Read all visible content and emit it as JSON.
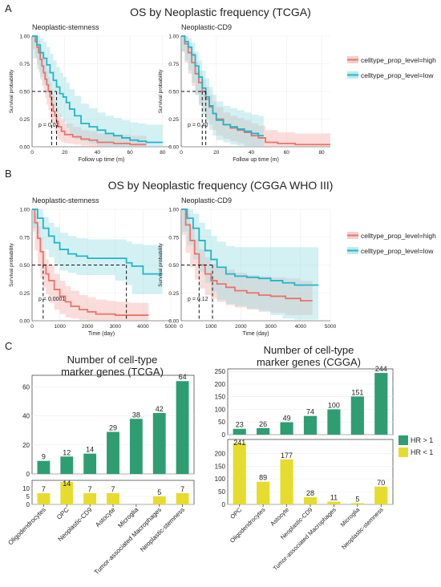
{
  "panel_labels": [
    "A",
    "B",
    "C"
  ],
  "section_titles": {
    "A": "OS by Neoplastic frequency (TCGA)",
    "B": "OS by Neoplastic frequency (CGGA WHO III)"
  },
  "km_legend": {
    "high": "celltype_prop_level=high",
    "low": "celltype_prop_level=low",
    "high_color": "#e8746b",
    "low_color": "#22b6c6"
  },
  "bar_legend": {
    "hr_up": "HR > 1",
    "hr_down": "HR < 1",
    "hr_up_color": "#2e9e72",
    "hr_down_color": "#e6dc2e"
  },
  "chart_data": [
    {
      "type": "line",
      "subtitle": "Neoplastic-stemness",
      "xlabel": "Follow up time (m)",
      "ylabel": "Survival probability",
      "xlim": [
        0,
        85
      ],
      "ylim": [
        0,
        1
      ],
      "x_ticks": [
        0,
        20,
        40,
        60,
        80
      ],
      "y_ticks": [
        "0.00",
        "0.25",
        "0.50",
        "0.75",
        "1.00"
      ],
      "pvalue": "p = 0.01",
      "medians": [
        12,
        15
      ],
      "series": [
        {
          "name": "celltype_prop_level=high",
          "color": "#e8746b",
          "x": [
            0,
            2,
            3,
            4,
            5,
            6,
            7,
            8,
            9,
            10,
            11,
            12,
            13,
            14,
            15,
            16,
            18,
            20,
            25,
            30,
            35,
            40,
            50,
            60,
            70
          ],
          "y": [
            1.0,
            0.95,
            0.9,
            0.85,
            0.79,
            0.73,
            0.67,
            0.61,
            0.56,
            0.5,
            0.45,
            0.38,
            0.32,
            0.28,
            0.23,
            0.18,
            0.14,
            0.11,
            0.09,
            0.07,
            0.06,
            0.04,
            0.03,
            0.02,
            0.02
          ],
          "band_upper": [
            1.0,
            1.0,
            0.99,
            0.96,
            0.91,
            0.85,
            0.8,
            0.74,
            0.69,
            0.63,
            0.58,
            0.52,
            0.46,
            0.41,
            0.36,
            0.3,
            0.25,
            0.21,
            0.18,
            0.15,
            0.14,
            0.12,
            0.11,
            0.1,
            0.1
          ],
          "band_lower": [
            1.0,
            0.88,
            0.8,
            0.74,
            0.67,
            0.61,
            0.55,
            0.49,
            0.44,
            0.38,
            0.33,
            0.26,
            0.21,
            0.17,
            0.13,
            0.09,
            0.06,
            0.04,
            0.03,
            0.02,
            0.01,
            0.0,
            0.0,
            0.0,
            0.0
          ]
        },
        {
          "name": "celltype_prop_level=low",
          "color": "#22b6c6",
          "x": [
            0,
            3,
            5,
            7,
            9,
            11,
            13,
            15,
            17,
            19,
            21,
            23,
            26,
            30,
            35,
            40,
            45,
            50,
            55,
            60,
            65,
            70,
            80
          ],
          "y": [
            1.0,
            0.92,
            0.85,
            0.8,
            0.74,
            0.67,
            0.6,
            0.54,
            0.48,
            0.45,
            0.4,
            0.34,
            0.28,
            0.21,
            0.18,
            0.15,
            0.12,
            0.1,
            0.08,
            0.06,
            0.05,
            0.04,
            0.04
          ],
          "band_upper": [
            1.0,
            1.0,
            0.98,
            0.95,
            0.9,
            0.84,
            0.78,
            0.72,
            0.67,
            0.63,
            0.58,
            0.52,
            0.46,
            0.39,
            0.35,
            0.31,
            0.28,
            0.26,
            0.24,
            0.22,
            0.21,
            0.2,
            0.2
          ],
          "band_lower": [
            1.0,
            0.8,
            0.7,
            0.63,
            0.56,
            0.49,
            0.42,
            0.36,
            0.3,
            0.27,
            0.22,
            0.17,
            0.12,
            0.07,
            0.05,
            0.03,
            0.01,
            0.0,
            0.0,
            0.0,
            0.0,
            0.0,
            0.0
          ]
        }
      ]
    },
    {
      "type": "line",
      "subtitle": "Neoplastic-CD9",
      "xlabel": "Follow up time (m)",
      "ylabel": "Survival probability",
      "xlim": [
        0,
        85
      ],
      "ylim": [
        0,
        1
      ],
      "x_ticks": [
        0,
        20,
        40,
        60,
        80
      ],
      "y_ticks": [
        "0.00",
        "0.25",
        "0.50",
        "0.75",
        "1.00"
      ],
      "pvalue": "p = 0.40",
      "medians": [
        12,
        14
      ],
      "series": [
        {
          "name": "celltype_prop_level=high",
          "color": "#e8746b",
          "x": [
            0,
            2,
            4,
            6,
            8,
            10,
            12,
            14,
            16,
            18,
            20,
            24,
            28,
            32,
            36,
            40,
            44,
            48,
            55,
            65,
            75,
            85
          ],
          "y": [
            1.0,
            0.93,
            0.85,
            0.76,
            0.66,
            0.58,
            0.5,
            0.43,
            0.36,
            0.3,
            0.25,
            0.2,
            0.17,
            0.15,
            0.13,
            0.1,
            0.08,
            0.04,
            0.03,
            0.02,
            0.02,
            0.02
          ],
          "band_upper": [
            1.0,
            1.0,
            0.94,
            0.86,
            0.77,
            0.69,
            0.61,
            0.54,
            0.47,
            0.41,
            0.36,
            0.31,
            0.28,
            0.26,
            0.24,
            0.21,
            0.19,
            0.15,
            0.13,
            0.12,
            0.12,
            0.12
          ],
          "band_lower": [
            1.0,
            0.86,
            0.76,
            0.66,
            0.55,
            0.47,
            0.39,
            0.32,
            0.25,
            0.2,
            0.15,
            0.1,
            0.07,
            0.05,
            0.03,
            0.01,
            0.0,
            0.0,
            0.0,
            0.0,
            0.0,
            0.0
          ]
        },
        {
          "name": "celltype_prop_level=low",
          "color": "#22b6c6",
          "x": [
            0,
            2,
            4,
            6,
            8,
            10,
            12,
            14,
            16,
            18,
            20,
            24,
            28,
            32,
            36,
            40,
            44,
            47
          ],
          "y": [
            1.0,
            0.95,
            0.9,
            0.83,
            0.73,
            0.63,
            0.53,
            0.45,
            0.37,
            0.3,
            0.24,
            0.2,
            0.18,
            0.16,
            0.14,
            0.12,
            0.1,
            0.1
          ],
          "band_upper": [
            1.0,
            1.0,
            0.98,
            0.94,
            0.86,
            0.78,
            0.69,
            0.62,
            0.54,
            0.47,
            0.41,
            0.37,
            0.35,
            0.33,
            0.31,
            0.29,
            0.28,
            0.28
          ],
          "band_lower": [
            1.0,
            0.86,
            0.78,
            0.69,
            0.58,
            0.47,
            0.37,
            0.29,
            0.21,
            0.15,
            0.1,
            0.06,
            0.04,
            0.02,
            0.01,
            0.0,
            0.0,
            0.0
          ]
        }
      ]
    },
    {
      "type": "line",
      "subtitle": "Neoplastic-stemness",
      "xlabel": "Time (day)",
      "ylabel": "Survival probability",
      "xlim": [
        0,
        5000
      ],
      "ylim": [
        0,
        1
      ],
      "x_ticks": [
        0,
        1000,
        2000,
        3000,
        4000,
        5000
      ],
      "y_ticks": [
        "0.00",
        "0.25",
        "0.50",
        "0.75",
        "1.00"
      ],
      "pvalue": "p = 0.0001",
      "medians": [
        400,
        3400
      ],
      "series": [
        {
          "name": "celltype_prop_level=high",
          "color": "#e8746b",
          "x": [
            0,
            100,
            200,
            300,
            400,
            500,
            600,
            800,
            1000,
            1200,
            1400,
            1700,
            2000,
            2300,
            2700,
            3000,
            3500,
            4200
          ],
          "y": [
            1.0,
            0.88,
            0.74,
            0.62,
            0.5,
            0.42,
            0.36,
            0.28,
            0.22,
            0.17,
            0.13,
            0.1,
            0.08,
            0.06,
            0.06,
            0.05,
            0.05,
            0.05
          ],
          "band_upper": [
            1.0,
            0.96,
            0.85,
            0.74,
            0.63,
            0.55,
            0.5,
            0.42,
            0.36,
            0.31,
            0.27,
            0.23,
            0.21,
            0.19,
            0.18,
            0.17,
            0.16,
            0.16
          ],
          "band_lower": [
            1.0,
            0.8,
            0.63,
            0.5,
            0.38,
            0.3,
            0.24,
            0.16,
            0.1,
            0.06,
            0.03,
            0.02,
            0.01,
            0.0,
            0.0,
            0.0,
            0.0,
            0.0
          ]
        },
        {
          "name": "celltype_prop_level=low",
          "color": "#22b6c6",
          "x": [
            0,
            200,
            400,
            600,
            800,
            1000,
            1300,
            1600,
            2000,
            2500,
            3000,
            3400,
            3600,
            4000,
            4400,
            4700
          ],
          "y": [
            1.0,
            0.92,
            0.83,
            0.76,
            0.7,
            0.64,
            0.6,
            0.58,
            0.56,
            0.56,
            0.56,
            0.52,
            0.49,
            0.42,
            0.42,
            0.42
          ],
          "band_upper": [
            1.0,
            1.0,
            0.93,
            0.88,
            0.84,
            0.79,
            0.76,
            0.74,
            0.73,
            0.73,
            0.73,
            0.71,
            0.69,
            0.68,
            0.68,
            0.68
          ],
          "band_lower": [
            1.0,
            0.83,
            0.72,
            0.64,
            0.57,
            0.5,
            0.45,
            0.43,
            0.41,
            0.41,
            0.41,
            0.36,
            0.32,
            0.24,
            0.24,
            0.24
          ]
        }
      ]
    },
    {
      "type": "line",
      "subtitle": "Neoplastic-CD9",
      "xlabel": "Time (day)",
      "ylabel": "Survival probability",
      "xlim": [
        0,
        5000
      ],
      "ylim": [
        0,
        1
      ],
      "x_ticks": [
        0,
        1000,
        2000,
        3000,
        4000,
        5000
      ],
      "y_ticks": [
        "0.00",
        "0.25",
        "0.50",
        "0.75",
        "1.00"
      ],
      "pvalue": "p = 0.12",
      "medians": [
        600,
        1050
      ],
      "series": [
        {
          "name": "celltype_prop_level=high",
          "color": "#e8746b",
          "x": [
            0,
            150,
            300,
            450,
            600,
            800,
            1000,
            1200,
            1500,
            1800,
            2200,
            2600,
            3000,
            3500,
            4000,
            4400
          ],
          "y": [
            1.0,
            0.86,
            0.72,
            0.6,
            0.5,
            0.42,
            0.36,
            0.33,
            0.3,
            0.27,
            0.25,
            0.23,
            0.22,
            0.2,
            0.18,
            0.18
          ],
          "band_upper": [
            1.0,
            0.96,
            0.84,
            0.73,
            0.64,
            0.57,
            0.51,
            0.48,
            0.46,
            0.43,
            0.41,
            0.4,
            0.39,
            0.38,
            0.36,
            0.36
          ],
          "band_lower": [
            1.0,
            0.77,
            0.61,
            0.48,
            0.37,
            0.29,
            0.23,
            0.2,
            0.17,
            0.14,
            0.12,
            0.1,
            0.09,
            0.07,
            0.05,
            0.05
          ]
        },
        {
          "name": "celltype_prop_level=low",
          "color": "#22b6c6",
          "x": [
            0,
            200,
            400,
            600,
            800,
            1000,
            1200,
            1500,
            1800,
            2200,
            2600,
            3000,
            3400,
            3800,
            4200,
            4600
          ],
          "y": [
            1.0,
            0.92,
            0.83,
            0.72,
            0.63,
            0.55,
            0.48,
            0.42,
            0.4,
            0.39,
            0.38,
            0.36,
            0.34,
            0.32,
            0.32,
            0.32
          ],
          "band_upper": [
            1.0,
            1.0,
            0.96,
            0.88,
            0.82,
            0.76,
            0.71,
            0.67,
            0.66,
            0.66,
            0.66,
            0.66,
            0.66,
            0.66,
            0.66,
            0.66
          ],
          "band_lower": [
            1.0,
            0.8,
            0.68,
            0.55,
            0.44,
            0.34,
            0.26,
            0.19,
            0.15,
            0.13,
            0.11,
            0.08,
            0.05,
            0.02,
            0.01,
            0.01
          ]
        }
      ]
    },
    {
      "type": "bar",
      "title": "Number of cell-type marker genes (TCGA)",
      "title_lines": [
        "Number of cell-type",
        "marker genes (TCGA)"
      ],
      "categories": [
        "Oligodendrocytes",
        "OPC",
        "Neoplastic-CD9",
        "Astocyte",
        "Microglia",
        "Tumor-associated Macrophages",
        "Neoplastic-stemness"
      ],
      "series": [
        {
          "name": "HR > 1",
          "values": [
            9,
            12,
            14,
            29,
            38,
            42,
            64
          ]
        },
        {
          "name": "HR < 1",
          "values": [
            7,
            14,
            7,
            7,
            0,
            5,
            7
          ]
        }
      ],
      "upper_ylim": [
        0,
        68
      ],
      "upper_ticks": [
        0,
        20,
        40,
        60
      ],
      "lower_ylim": [
        0,
        15
      ],
      "lower_ticks": [
        0,
        5,
        10
      ]
    },
    {
      "type": "bar",
      "title": "Number of cell-type marker genes (CGGA)",
      "title_lines": [
        "Number of cell-type",
        "marker genes (CGGA)"
      ],
      "upper_categories": [
        "OPC",
        "Oligodendrocytes",
        "Astocyte",
        "Neoplastic-CD9",
        "Tumor-associated Macrophages",
        "Microglia",
        "Neoplastic-stemness"
      ],
      "categories": [
        "OPC",
        "Oligodendrocytes",
        "Astocyte",
        "Neoplastic-CD9",
        "Tumor-associated Macrophages",
        "Microglia",
        "Neoplastic-stemness"
      ],
      "series": [
        {
          "name": "HR > 1",
          "values": [
            23,
            26,
            49,
            74,
            100,
            151,
            244
          ]
        },
        {
          "name": "HR < 1",
          "values": [
            241,
            89,
            177,
            28,
            11,
            5,
            70
          ]
        }
      ],
      "upper_ylim": [
        0,
        260
      ],
      "upper_ticks": [
        0,
        50,
        100,
        150,
        200,
        250
      ],
      "lower_ylim": [
        0,
        255
      ],
      "lower_ticks": [
        0,
        50,
        100,
        150,
        200
      ]
    }
  ]
}
